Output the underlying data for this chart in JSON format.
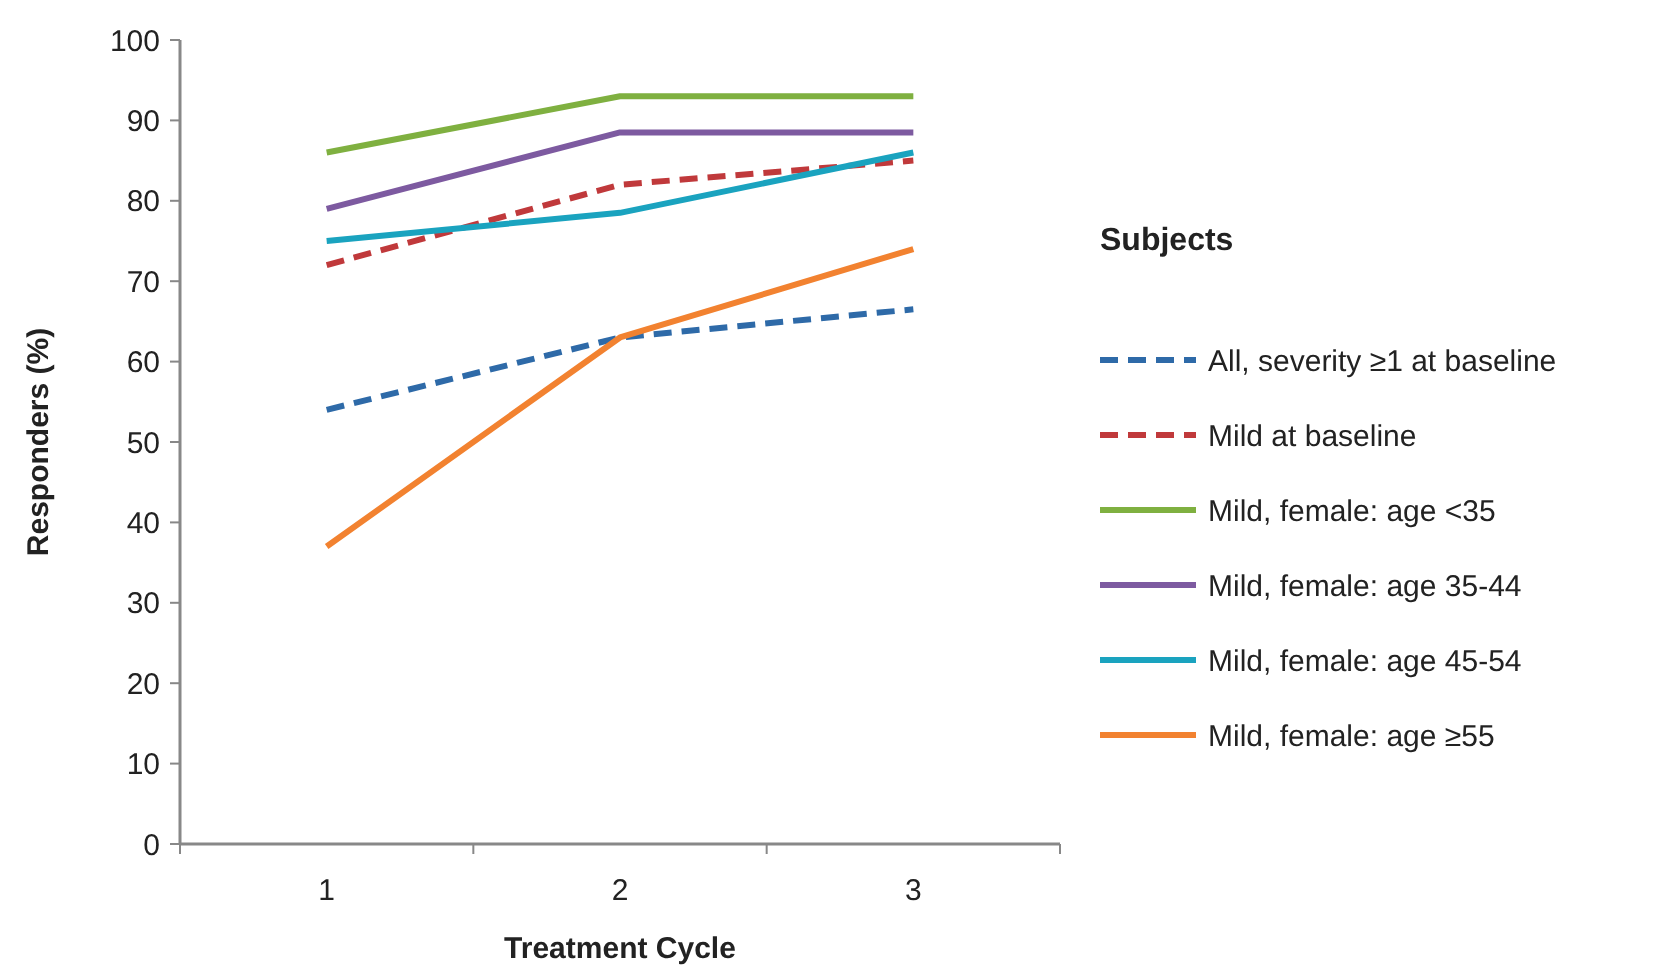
{
  "chart_data": {
    "type": "line",
    "xlabel": "Treatment Cycle",
    "ylabel": "Responders (%)",
    "legend_title": "Subjects",
    "legend": "right",
    "categories": [
      "1",
      "2",
      "3"
    ],
    "ylim": [
      0,
      100
    ],
    "yticks": [
      0,
      10,
      20,
      30,
      40,
      50,
      60,
      70,
      80,
      90,
      100
    ],
    "series": [
      {
        "name": "All, severity ≥1 at baseline",
        "color": "#2e6aa8",
        "line_style": "dashed",
        "values": [
          54,
          63,
          66.5
        ]
      },
      {
        "name": "Mild at baseline",
        "color": "#c0393b",
        "line_style": "dashed",
        "values": [
          72,
          82,
          85
        ]
      },
      {
        "name": "Mild, female: age <35",
        "color": "#7fb040",
        "line_style": "solid",
        "values": [
          86,
          93,
          93
        ]
      },
      {
        "name": "Mild, female: age 35-44",
        "color": "#7d5aa0",
        "line_style": "solid",
        "values": [
          79,
          88.5,
          88.5
        ]
      },
      {
        "name": "Mild, female: age 45-54",
        "color": "#1aa3bf",
        "line_style": "solid",
        "values": [
          75,
          78.5,
          86
        ]
      },
      {
        "name": "Mild, female: age ≥55",
        "color": "#f28230",
        "line_style": "solid",
        "values": [
          37,
          63,
          74
        ]
      }
    ]
  }
}
